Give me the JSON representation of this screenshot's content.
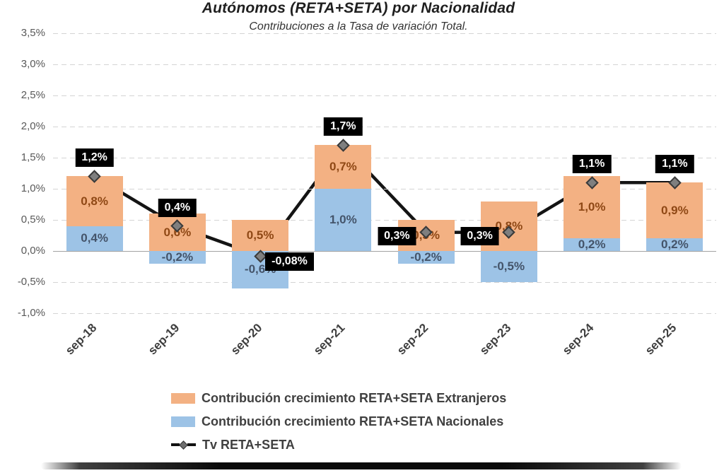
{
  "title": "Autónomos (RETA+SETA) por Nacionalidad",
  "subtitle": "Contribuciones a la Tasa de variación Total.",
  "colors": {
    "extranjeros_bar": "#F3B183",
    "nacionales_bar": "#9DC3E6",
    "extranjeros_text": "#8F4815",
    "nacionales_text": "#44546A",
    "line": "#141414",
    "marker_fill": "#7F7F7F",
    "marker_border": "#3A3A3A",
    "annotation_bg": "#000000",
    "annotation_text": "#FFFFFF"
  },
  "chart_data": {
    "type": "bar",
    "subtype": "stacked-bars-with-line",
    "categories": [
      "sep-18",
      "sep-19",
      "sep-20",
      "sep-21",
      "sep-22",
      "sep-23",
      "sep-24",
      "sep-25"
    ],
    "series": [
      {
        "name": "Contribución crecimiento RETA+SETA Extranjeros",
        "type": "bar",
        "color": "#F3B183",
        "values": [
          0.8,
          0.6,
          0.5,
          0.7,
          0.5,
          0.8,
          1.0,
          0.9
        ],
        "labels": [
          "0,8%",
          "0,6%",
          "0,5%",
          "0,7%",
          "0,5%",
          "0,8%",
          "1,0%",
          "0,9%"
        ]
      },
      {
        "name": "Contribución crecimiento RETA+SETA Nacionales",
        "type": "bar",
        "color": "#9DC3E6",
        "values": [
          0.4,
          -0.2,
          -0.6,
          1.0,
          -0.2,
          -0.5,
          0.2,
          0.2
        ],
        "labels": [
          "0,4%",
          "-0,2%",
          "-0,6%",
          "1,0%",
          "-0,2%",
          "-0,5%",
          "0,2%",
          "0,2%"
        ]
      },
      {
        "name": "Tv RETA+SETA",
        "type": "line",
        "color": "#141414",
        "values": [
          1.2,
          0.4,
          -0.08,
          1.7,
          0.3,
          0.3,
          1.1,
          1.1
        ],
        "labels": [
          "1,2%",
          "0,4%",
          "-0,08%",
          "1,7%",
          "0,3%",
          "0,3%",
          "1,1%",
          "1,1%"
        ],
        "label_placement": [
          "above",
          "above",
          "right",
          "above",
          "left",
          "left",
          "above",
          "above"
        ]
      }
    ],
    "y_ticks": [
      "3,5%",
      "3,0%",
      "2,5%",
      "2,0%",
      "1,5%",
      "1,0%",
      "0,5%",
      "0,0%",
      "-0,5%",
      "-1,0%"
    ],
    "ylim": [
      -1.0,
      3.5
    ],
    "grid": "dashed-horizontal, solid zero line",
    "legend_position": "bottom-left"
  }
}
